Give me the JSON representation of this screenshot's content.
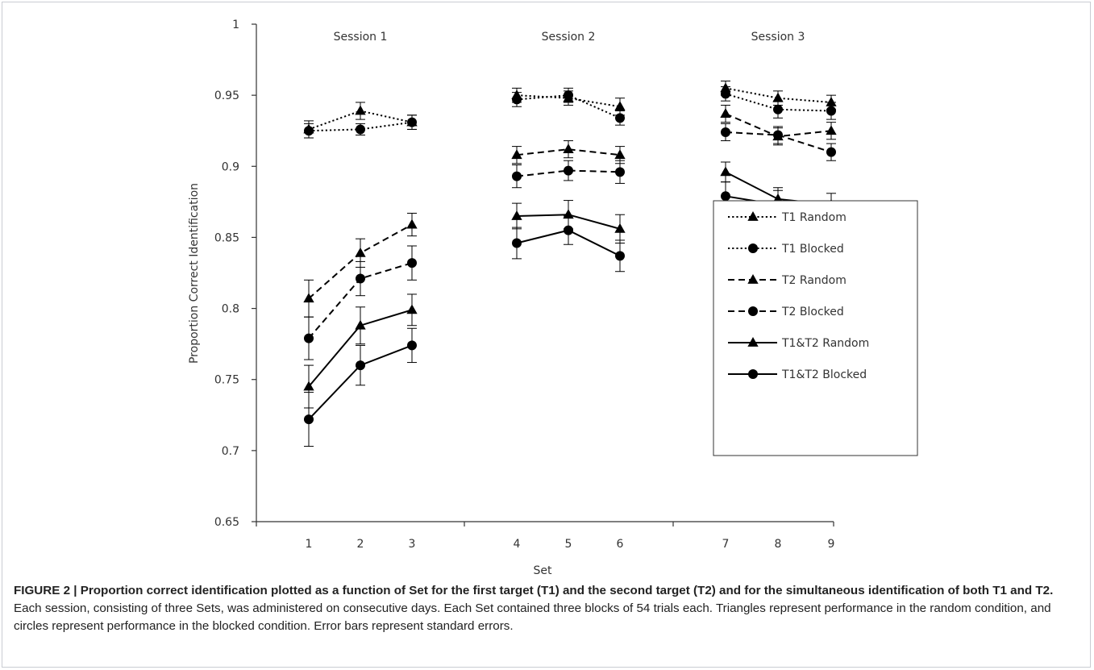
{
  "chart_data": {
    "type": "line",
    "xlabel": "Set",
    "ylabel": "Proportion Correct Identification",
    "ylim": [
      0.65,
      1
    ],
    "yticks": [
      "0.65",
      "0.7",
      "0.75",
      "0.8",
      "0.85",
      "0.9",
      "0.95",
      "1"
    ],
    "x": [
      1,
      2,
      3,
      4,
      5,
      6,
      7,
      8,
      9
    ],
    "x_tick_labels": [
      "1",
      "2",
      "3",
      "4",
      "5",
      "6",
      "7",
      "8",
      "9"
    ],
    "groups": [
      {
        "label": "Session 1",
        "sets": [
          1,
          2,
          3
        ]
      },
      {
        "label": "Session 2",
        "sets": [
          4,
          5,
          6
        ]
      },
      {
        "label": "Session 3",
        "sets": [
          7,
          8,
          9
        ]
      }
    ],
    "grid": false,
    "legend_position": "right",
    "series": [
      {
        "name": "T1 Random",
        "marker": "triangle",
        "line": "dotted",
        "values": [
          0.926,
          0.939,
          0.931,
          0.95,
          0.948,
          0.942,
          0.955,
          0.948,
          0.945
        ],
        "errors": [
          0.006,
          0.006,
          0.005,
          0.005,
          0.005,
          0.006,
          0.005,
          0.005,
          0.005
        ]
      },
      {
        "name": "T1 Blocked",
        "marker": "circle",
        "line": "dotted",
        "values": [
          0.925,
          0.926,
          0.931,
          0.947,
          0.95,
          0.934,
          0.951,
          0.94,
          0.939
        ],
        "errors": [
          0.005,
          0.004,
          0.005,
          0.005,
          0.005,
          0.005,
          0.005,
          0.006,
          0.006
        ]
      },
      {
        "name": "T2 Random",
        "marker": "triangle",
        "line": "dashed",
        "values": [
          0.807,
          0.839,
          0.859,
          0.908,
          0.912,
          0.908,
          0.937,
          0.921,
          0.925
        ],
        "errors": [
          0.013,
          0.01,
          0.008,
          0.006,
          0.006,
          0.006,
          0.006,
          0.006,
          0.006
        ]
      },
      {
        "name": "T2 Blocked",
        "marker": "circle",
        "line": "dashed",
        "values": [
          0.779,
          0.821,
          0.832,
          0.893,
          0.897,
          0.896,
          0.924,
          0.922,
          0.91
        ],
        "errors": [
          0.015,
          0.012,
          0.012,
          0.008,
          0.007,
          0.008,
          0.006,
          0.006,
          0.006
        ]
      },
      {
        "name": "T1&T2 Random",
        "marker": "triangle",
        "line": "solid",
        "values": [
          0.745,
          0.788,
          0.799,
          0.865,
          0.866,
          0.856,
          0.896,
          0.877,
          0.873
        ],
        "errors": [
          0.015,
          0.013,
          0.011,
          0.009,
          0.01,
          0.01,
          0.007,
          0.008,
          0.008
        ]
      },
      {
        "name": "T1&T2 Blocked",
        "marker": "circle",
        "line": "solid",
        "values": [
          0.722,
          0.76,
          0.774,
          0.846,
          0.855,
          0.837,
          0.879,
          0.873,
          0.858
        ],
        "errors": [
          0.019,
          0.014,
          0.012,
          0.011,
          0.01,
          0.011,
          0.01,
          0.01,
          0.009
        ]
      }
    ]
  },
  "caption": {
    "bold": "FIGURE 2 | Proportion correct identification plotted as a function of Set for the first target (T1) and the second target (T2) and for the simultaneous identification of both T1 and T2.",
    "text": " Each session, consisting of three Sets, was administered on consecutive days. Each Set contained three blocks of 54 trials each. Triangles represent performance in the random condition, and circles represent performance in the blocked condition. Error bars represent standard errors."
  }
}
